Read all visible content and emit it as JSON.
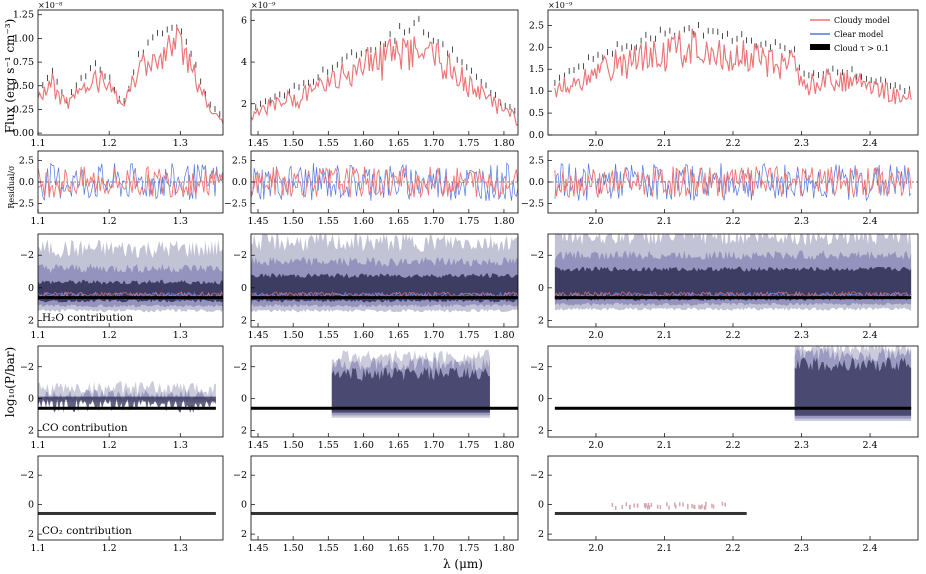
{
  "figure": {
    "xlabel": "λ (μm)",
    "ylabel_flux": "Flux (erg s⁻¹ cm⁻³)",
    "ylabel_resid": "Residual/σ",
    "ylabel_contrib": "log₁₀(P/bar)",
    "legend": [
      "Cloudy model",
      "Clear model",
      "Cloud τ > 0.1"
    ],
    "colors": {
      "cloudy": "#ee7474",
      "clear": "#5577dd",
      "cloud": "#000000",
      "data": "#222222",
      "contrib_outer": "#b9b9cf",
      "contrib_mid": "#8b8bb8",
      "contrib_inner": "#2e2e55"
    }
  },
  "chart_data": [
    {
      "type": "line",
      "panel": "flux-1",
      "title": "",
      "xlim": [
        1.1,
        1.36
      ],
      "ylim": [
        -0.02,
        1.3
      ],
      "x_ticks": [
        "1.1",
        "1.2",
        "1.3"
      ],
      "y_ticks": [
        "0.00",
        "0.25",
        "0.50",
        "0.75",
        "1.00",
        "1.25"
      ],
      "y_scale_label": "×10⁻⁸",
      "y_unit_exp": -8,
      "x": [
        1.1,
        1.12,
        1.14,
        1.16,
        1.18,
        1.2,
        1.22,
        1.24,
        1.26,
        1.28,
        1.3,
        1.32,
        1.34,
        1.36
      ],
      "series": [
        {
          "name": "Cloudy model",
          "values": [
            0.45,
            0.62,
            0.35,
            0.55,
            0.72,
            0.58,
            0.3,
            0.78,
            0.95,
            1.05,
            1.12,
            0.75,
            0.32,
            0.15
          ]
        }
      ]
    },
    {
      "type": "line",
      "panel": "flux-2",
      "xlim": [
        1.44,
        1.82
      ],
      "ylim": [
        0.5,
        6.5
      ],
      "x_ticks": [
        "1.45",
        "1.50",
        "1.55",
        "1.60",
        "1.65",
        "1.70",
        "1.75",
        "1.80"
      ],
      "y_ticks": [
        "2",
        "4",
        "6"
      ],
      "y_scale_label": "×10⁻⁹",
      "y_unit_exp": -9,
      "x": [
        1.44,
        1.48,
        1.52,
        1.56,
        1.6,
        1.64,
        1.68,
        1.72,
        1.76,
        1.8,
        1.82
      ],
      "series": [
        {
          "name": "Cloudy model",
          "values": [
            1.8,
            2.4,
            3.0,
            3.8,
            4.5,
            5.2,
            5.8,
            4.6,
            3.2,
            2.0,
            1.5
          ]
        }
      ]
    },
    {
      "type": "line",
      "panel": "flux-3",
      "xlim": [
        1.93,
        2.47
      ],
      "ylim": [
        0.0,
        2.85
      ],
      "x_ticks": [
        "2.0",
        "2.1",
        "2.2",
        "2.3",
        "2.4"
      ],
      "y_ticks": [
        "0.0",
        "0.5",
        "1.0",
        "1.5",
        "2.0",
        "2.5"
      ],
      "y_scale_label": "×10⁻⁹",
      "y_unit_exp": -9,
      "x": [
        1.94,
        1.98,
        2.02,
        2.06,
        2.1,
        2.14,
        2.18,
        2.22,
        2.26,
        2.29,
        2.3,
        2.34,
        2.38,
        2.42,
        2.46
      ],
      "series": [
        {
          "name": "Cloudy model",
          "values": [
            1.2,
            1.6,
            1.9,
            2.1,
            2.3,
            2.4,
            2.3,
            2.2,
            2.0,
            1.9,
            1.3,
            1.5,
            1.4,
            1.2,
            1.0
          ]
        }
      ]
    },
    {
      "type": "line",
      "panel": "resid-1",
      "xlim": [
        1.1,
        1.36
      ],
      "ylim": [
        -3.6,
        3.6
      ],
      "x_ticks": [
        "1.1",
        "1.2",
        "1.3"
      ],
      "y_ticks": [
        "−2.5",
        "0.0",
        "2.5"
      ],
      "x": [
        1.1,
        1.36
      ],
      "series": [
        {
          "name": "Cloudy model",
          "values": [
            0,
            0
          ]
        }
      ]
    },
    {
      "type": "line",
      "panel": "resid-2",
      "xlim": [
        1.44,
        1.82
      ],
      "ylim": [
        -3.6,
        3.6
      ],
      "x_ticks": [
        "1.45",
        "1.50",
        "1.55",
        "1.60",
        "1.65",
        "1.70",
        "1.75",
        "1.80"
      ],
      "y_ticks": [
        "−2.5",
        "0.0",
        "2.5"
      ],
      "x": [
        1.44,
        1.82
      ],
      "series": [
        {
          "name": "Cloudy model",
          "values": [
            0,
            0
          ]
        }
      ]
    },
    {
      "type": "line",
      "panel": "resid-3",
      "xlim": [
        1.93,
        2.47
      ],
      "ylim": [
        -3.6,
        3.6
      ],
      "x_ticks": [
        "2.0",
        "2.1",
        "2.2",
        "2.3",
        "2.4"
      ],
      "y_ticks": [
        "−2.5",
        "0.0",
        "2.5"
      ],
      "x": [
        1.94,
        2.46
      ],
      "series": [
        {
          "name": "Cloudy model",
          "values": [
            0,
            0
          ]
        }
      ]
    },
    {
      "type": "area",
      "panel": "h2o-1",
      "annotation": "H₂O contribution",
      "xlim": [
        1.1,
        1.36
      ],
      "ylim_inverted": [
        2.4,
        -3.3
      ],
      "x_ticks": [
        "1.1",
        "1.2",
        "1.3"
      ],
      "y_ticks": [
        "−2",
        "0",
        "2"
      ],
      "x": [
        1.1,
        1.36
      ],
      "cloud_top": 0.6,
      "band_top": -0.8,
      "band_bottom": 0.9
    },
    {
      "type": "area",
      "panel": "h2o-2",
      "xlim": [
        1.44,
        1.82
      ],
      "ylim_inverted": [
        2.4,
        -3.3
      ],
      "x_ticks": [
        "1.45",
        "1.50",
        "1.55",
        "1.60",
        "1.65",
        "1.70",
        "1.75",
        "1.80"
      ],
      "y_ticks": [
        "−2",
        "0",
        "2"
      ],
      "x": [
        1.44,
        1.82
      ],
      "cloud_top": 0.6,
      "band_top": -1.2,
      "band_bottom": 0.9
    },
    {
      "type": "area",
      "panel": "h2o-3",
      "xlim": [
        1.93,
        2.47
      ],
      "ylim_inverted": [
        2.4,
        -3.3
      ],
      "x_ticks": [
        "2.0",
        "2.1",
        "2.2",
        "2.3",
        "2.4"
      ],
      "y_ticks": [
        "−2",
        "0",
        "2"
      ],
      "x": [
        1.94,
        2.46
      ],
      "cloud_top": 0.6,
      "band_top": -1.6,
      "band_bottom": 0.8
    },
    {
      "type": "area",
      "panel": "co-1",
      "annotation": "CO contribution",
      "xlim": [
        1.1,
        1.36
      ],
      "ylim_inverted": [
        2.4,
        -3.3
      ],
      "x_ticks": [
        "1.1",
        "1.2",
        "1.3"
      ],
      "y_ticks": [
        "−2",
        "0",
        "2"
      ],
      "x": [
        1.1,
        1.35
      ],
      "cloud_top": 0.6
    },
    {
      "type": "area",
      "panel": "co-2",
      "xlim": [
        1.44,
        1.82
      ],
      "ylim_inverted": [
        2.4,
        -3.3
      ],
      "x_ticks": [
        "1.45",
        "1.50",
        "1.55",
        "1.60",
        "1.65",
        "1.70",
        "1.75",
        "1.80"
      ],
      "y_ticks": [
        "−2",
        "0",
        "2"
      ],
      "x": [
        1.44,
        1.82
      ],
      "cloud_top": 0.6
    },
    {
      "type": "area",
      "panel": "co-3",
      "xlim": [
        1.93,
        2.47
      ],
      "ylim_inverted": [
        2.4,
        -3.3
      ],
      "x_ticks": [
        "2.0",
        "2.1",
        "2.2",
        "2.3",
        "2.4"
      ],
      "y_ticks": [
        "−2",
        "0",
        "2"
      ],
      "x": [
        1.94,
        2.46
      ],
      "cloud_top": 0.6
    },
    {
      "type": "area",
      "panel": "co2-1",
      "annotation": "CO₂ contribution",
      "xlim": [
        1.1,
        1.36
      ],
      "ylim_inverted": [
        2.4,
        -3.3
      ],
      "x_ticks": [
        "1.1",
        "1.2",
        "1.3"
      ],
      "y_ticks": [
        "−2",
        "0",
        "2"
      ],
      "x": [
        1.1,
        1.35
      ],
      "cloud_top": 0.6
    },
    {
      "type": "area",
      "panel": "co2-2",
      "xlim": [
        1.44,
        1.82
      ],
      "ylim_inverted": [
        2.4,
        -3.3
      ],
      "x_ticks": [
        "1.45",
        "1.50",
        "1.55",
        "1.60",
        "1.65",
        "1.70",
        "1.75",
        "1.80"
      ],
      "y_ticks": [
        "−2",
        "0",
        "2"
      ],
      "x": [
        1.44,
        1.82
      ],
      "cloud_top": 0.6
    },
    {
      "type": "area",
      "panel": "co2-3",
      "xlim": [
        1.93,
        2.47
      ],
      "ylim_inverted": [
        2.4,
        -3.3
      ],
      "x_ticks": [
        "2.0",
        "2.1",
        "2.2",
        "2.3",
        "2.4"
      ],
      "y_ticks": [
        "−2",
        "0",
        "2"
      ],
      "x": [
        1.94,
        2.22
      ],
      "cloud_top": 0.6
    }
  ]
}
